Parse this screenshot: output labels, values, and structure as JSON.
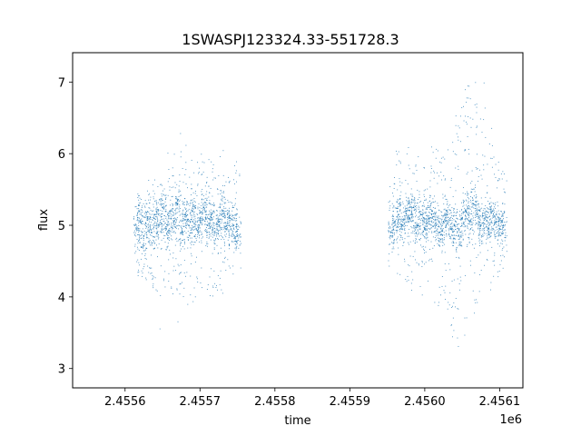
{
  "chart_data": {
    "type": "scatter",
    "title": "1SWASPJ123324.33-551728.3",
    "xlabel": "time",
    "ylabel": "flux",
    "x_offset_label": "1e6",
    "xlim": [
      2.45553,
      2.456131
    ],
    "ylim": [
      2.73,
      7.41
    ],
    "xticks": [
      2.4556,
      2.4557,
      2.4558,
      2.4559,
      2.456,
      2.4561
    ],
    "xtick_labels": [
      "2.4556",
      "2.4557",
      "2.4558",
      "2.4559",
      "2.4560",
      "2.4561"
    ],
    "yticks": [
      3,
      4,
      5,
      6,
      7
    ],
    "ytick_labels": [
      "3",
      "4",
      "5",
      "6",
      "7"
    ],
    "grid": false,
    "marker_color": "#1f77b4",
    "series": [
      {
        "x": [
          2.455615,
          2.45562,
          2.455625,
          2.45563,
          2.455635,
          2.45564,
          2.455645,
          2.45565,
          2.455655,
          2.45566,
          2.455665,
          2.45567,
          2.455675,
          2.45568,
          2.455685,
          2.45569,
          2.455695,
          2.4557,
          2.455705,
          2.45571,
          2.455715,
          2.45572,
          2.455725,
          2.45573,
          2.455735,
          2.45574,
          2.455745,
          2.45575,
          2.455955,
          2.45596,
          2.455965,
          2.45597,
          2.455975,
          2.45598,
          2.455985,
          2.45599,
          2.455995,
          2.456,
          2.456005,
          2.45601,
          2.456015,
          2.45602,
          2.456025,
          2.45603,
          2.456035,
          2.45604,
          2.456045,
          2.45605,
          2.456055,
          2.45606,
          2.456065,
          2.45607,
          2.456075,
          2.45608,
          2.456085,
          2.45609,
          2.456095,
          2.4561,
          2.456105
        ],
        "y": [
          4.95,
          5.05,
          4.85,
          5.1,
          4.9,
          5.15,
          5.0,
          5.25,
          4.95,
          5.2,
          5.05,
          5.3,
          4.9,
          5.15,
          5.0,
          5.2,
          4.95,
          5.1,
          5.25,
          5.0,
          5.15,
          4.9,
          5.05,
          5.2,
          4.95,
          5.1,
          5.0,
          4.85,
          4.9,
          5.05,
          5.15,
          5.0,
          5.2,
          5.1,
          5.25,
          5.0,
          5.15,
          4.95,
          5.1,
          5.2,
          5.0,
          4.9,
          5.05,
          5.15,
          4.95,
          5.0,
          4.85,
          5.1,
          5.2,
          5.05,
          5.3,
          5.15,
          5.0,
          5.1,
          4.95,
          5.2,
          5.05,
          4.95,
          5.0
        ],
        "y_low": [
          4.35,
          4.3,
          4.2,
          4.25,
          4.15,
          4.05,
          4.3,
          3.55,
          4.2,
          3.9,
          4.1,
          3.6,
          4.0,
          3.8,
          4.05,
          3.75,
          3.85,
          3.9,
          4.1,
          4.0,
          4.2,
          3.85,
          4.1,
          4.05,
          4.35,
          4.25,
          4.4,
          4.35,
          4.35,
          4.3,
          4.25,
          4.2,
          4.15,
          4.05,
          4.1,
          3.95,
          4.0,
          4.15,
          4.1,
          4.2,
          3.8,
          3.65,
          3.85,
          3.55,
          3.5,
          3.2,
          3.0,
          3.4,
          3.6,
          3.55,
          3.7,
          3.9,
          3.85,
          4.05,
          4.1,
          4.2,
          4.25,
          4.4,
          4.5
        ],
        "y_high": [
          5.55,
          5.6,
          5.45,
          5.65,
          5.5,
          5.75,
          5.7,
          5.9,
          5.6,
          6.2,
          6.0,
          6.3,
          5.8,
          6.15,
          6.0,
          6.25,
          5.9,
          6.0,
          6.35,
          5.9,
          6.2,
          5.85,
          6.1,
          6.3,
          5.8,
          5.7,
          5.95,
          5.9,
          5.6,
          5.75,
          6.05,
          5.95,
          6.15,
          6.1,
          6.25,
          6.2,
          6.3,
          5.9,
          6.05,
          6.2,
          6.1,
          6.0,
          6.2,
          6.3,
          6.1,
          6.4,
          6.7,
          6.9,
          6.8,
          7.0,
          7.1,
          6.8,
          6.7,
          7.0,
          6.2,
          6.6,
          6.1,
          6.0,
          5.8
        ]
      }
    ]
  }
}
